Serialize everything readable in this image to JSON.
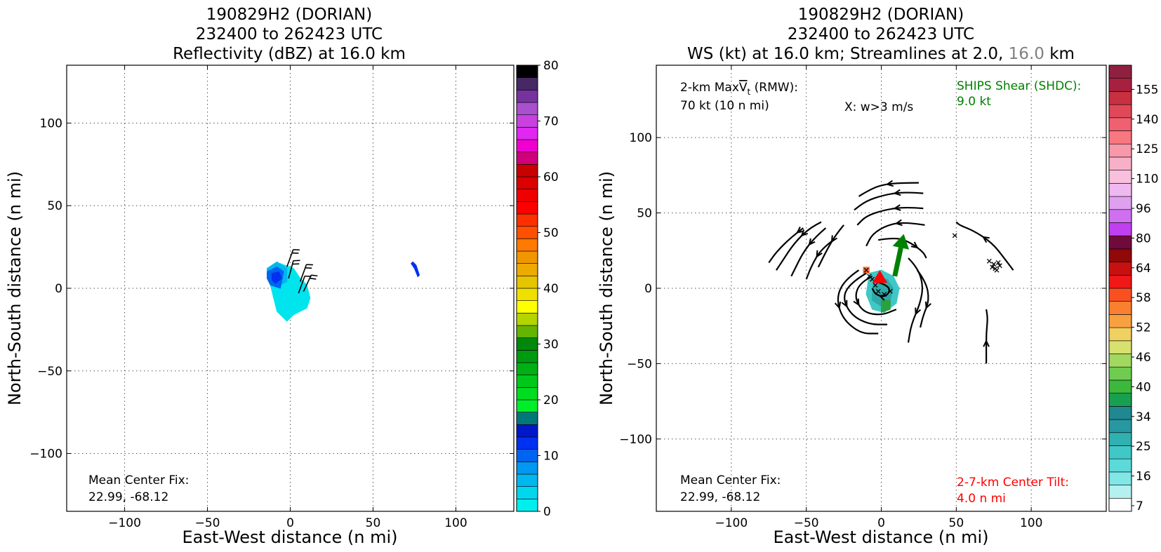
{
  "chart_data": [
    {
      "type": "heatmap",
      "title_lines": [
        "190829H2 (DORIAN)",
        "232400 to 262423 UTC",
        "Reflectivity (dBZ) at 16.0 km"
      ],
      "xlabel": "East-West distance (n mi)",
      "ylabel": "North-South distance (n mi)",
      "xlim": [
        -135,
        135
      ],
      "ylim": [
        -135,
        135
      ],
      "xticks": [
        -100,
        -50,
        0,
        50,
        100
      ],
      "yticks": [
        -100,
        -50,
        0,
        50,
        100
      ],
      "xticklabels": [
        "−100",
        "−50",
        "0",
        "50",
        "100"
      ],
      "yticklabels": [
        "−100",
        "−50",
        "0",
        "50",
        "100"
      ],
      "grid": true,
      "annotation_label": "Mean Center Fix:",
      "annotation_value": "22.99, -68.12",
      "colorbar": {
        "min": 0,
        "max": 80,
        "step": 4,
        "tick_values": [
          0,
          10,
          20,
          30,
          40,
          50,
          60,
          70,
          80
        ],
        "tick_labels": [
          "0",
          "10",
          "20",
          "30",
          "40",
          "50",
          "60",
          "70",
          "80"
        ],
        "colors": [
          "#00eeee",
          "#00d6ee",
          "#00b8ee",
          "#0098f0",
          "#0064f0",
          "#0030f0",
          "#0018c8",
          "#00787a",
          "#00ee2a",
          "#00dc20",
          "#00c81a",
          "#00b014",
          "#009a10",
          "#00880c",
          "#64b400",
          "#b4d400",
          "#ffff00",
          "#f0e000",
          "#e6c400",
          "#eeaa00",
          "#f09600",
          "#ff7800",
          "#ff5000",
          "#ff3000",
          "#ff0000",
          "#ee0000",
          "#dc0000",
          "#c80000",
          "#d0007a",
          "#f000d0",
          "#e028f0",
          "#c842e0",
          "#a850d0",
          "#7832a0",
          "#462864",
          "#000000"
        ]
      },
      "echo_regions": [
        {
          "color": "#00e4ee",
          "polygon": [
            [
              -12,
              10
            ],
            [
              -6,
              15
            ],
            [
              2,
              12
            ],
            [
              6,
              6
            ],
            [
              10,
              2
            ],
            [
              12,
              -6
            ],
            [
              10,
              -12
            ],
            [
              2,
              -16
            ],
            [
              -2,
              -20
            ],
            [
              -8,
              -14
            ],
            [
              -10,
              -6
            ],
            [
              -12,
              2
            ]
          ]
        },
        {
          "color": "#00b8ee",
          "polygon": [
            [
              -14,
              12
            ],
            [
              -8,
              16
            ],
            [
              -2,
              12
            ],
            [
              -2,
              4
            ],
            [
              -6,
              2
            ],
            [
              -10,
              4
            ],
            [
              -14,
              6
            ]
          ]
        },
        {
          "color": "#0064f0",
          "polygon": [
            [
              -14,
              10
            ],
            [
              -8,
              13
            ],
            [
              -4,
              10
            ],
            [
              -6,
              0
            ],
            [
              -12,
              2
            ],
            [
              -14,
              6
            ]
          ]
        },
        {
          "color": "#0030f0",
          "polygon": [
            [
              -11,
              9
            ],
            [
              -7,
              10
            ],
            [
              -5,
              6
            ],
            [
              -9,
              3
            ],
            [
              -11,
              5
            ]
          ]
        },
        {
          "color": "#0030f0",
          "polygon": [
            [
              74,
              16
            ],
            [
              76,
              14
            ],
            [
              78,
              8
            ],
            [
              77,
              7
            ],
            [
              75,
              12
            ],
            [
              73,
              15
            ]
          ]
        }
      ],
      "barbs": [
        {
          "x": -2,
          "y": 13,
          "dir": 200,
          "flags": 2
        },
        {
          "x": -1,
          "y": 6,
          "dir": 195,
          "flags": 2
        },
        {
          "x": 6,
          "y": 4,
          "dir": 200,
          "flags": 2
        },
        {
          "x": 8,
          "y": -2,
          "dir": 205,
          "flags": 2
        },
        {
          "x": 5,
          "y": -3,
          "dir": 200,
          "flags": 1
        }
      ]
    },
    {
      "type": "heatmap",
      "title_lines": [
        "190829H2 (DORIAN)",
        "232400 to 262423 UTC"
      ],
      "title_line3_parts": [
        "WS (kt) at 16.0 km; Streamlines at 2.0,",
        "16.0",
        "km"
      ],
      "title_line3_colors": [
        "#000000",
        "#808080",
        "#000000"
      ],
      "xlabel": "East-West distance (n mi)",
      "ylabel": "North-South distance (n mi)",
      "xlim": [
        -150,
        150
      ],
      "ylim": [
        -148,
        148
      ],
      "xticks": [
        -100,
        -50,
        0,
        50,
        100
      ],
      "yticks": [
        -100,
        -50,
        0,
        50,
        100
      ],
      "xticklabels": [
        "−100",
        "−50",
        "0",
        "50",
        "100"
      ],
      "yticklabels": [
        "−100",
        "−50",
        "0",
        "50",
        "100"
      ],
      "grid": true,
      "rmw_label_prefix": "2-km Max",
      "rmw_label_v": "V",
      "rmw_label_sub": "t",
      "rmw_label_suffix": " (RMW):",
      "rmw_value": "70 kt (10 n mi)",
      "w_label": "X: w>3 m/s",
      "shear_label": "SHIPS Shear (SHDC):",
      "shear_value": "9.0 kt",
      "shear_color": "#008000",
      "tilt_label": "2-7-km Center Tilt:",
      "tilt_value": "4.0 n mi",
      "tilt_color": "#ff0000",
      "annotation_label": "Mean Center Fix:",
      "annotation_value": "22.99, -68.12",
      "shear_vector": {
        "from": [
          9,
          8
        ],
        "to": [
          15,
          36
        ]
      },
      "tilt_vector": {
        "from": [
          -1,
          4
        ],
        "to": [
          -1,
          12
        ]
      },
      "w_points": [
        [
          -10,
          12
        ],
        [
          -8,
          8
        ],
        [
          -6,
          6
        ],
        [
          -4,
          2
        ],
        [
          -2,
          -2
        ],
        [
          2,
          -4
        ],
        [
          6,
          -2
        ],
        [
          49,
          35
        ],
        [
          72,
          18
        ],
        [
          74,
          14
        ],
        [
          75,
          16
        ],
        [
          76,
          13
        ],
        [
          78,
          17
        ],
        [
          79,
          15
        ],
        [
          77,
          12
        ]
      ],
      "ws_patch": [
        {
          "color": "#40c8c8",
          "polygon": [
            [
              -8,
              10
            ],
            [
              0,
              12
            ],
            [
              8,
              8
            ],
            [
              12,
              0
            ],
            [
              10,
              -10
            ],
            [
              2,
              -16
            ],
            [
              -6,
              -14
            ],
            [
              -10,
              -4
            ]
          ]
        },
        {
          "color": "#30a8a8",
          "polygon": [
            [
              -4,
              6
            ],
            [
              4,
              6
            ],
            [
              8,
              0
            ],
            [
              6,
              -8
            ],
            [
              0,
              -12
            ],
            [
              -6,
              -8
            ],
            [
              -6,
              0
            ]
          ]
        },
        {
          "color": "#2aa040",
          "polygon": [
            [
              0,
              -8
            ],
            [
              6,
              -8
            ],
            [
              6,
              -14
            ],
            [
              0,
              -16
            ]
          ]
        },
        {
          "color": "#ff7030",
          "polygon": [
            [
              -12,
              14
            ],
            [
              -8,
              14
            ],
            [
              -8,
              10
            ],
            [
              -12,
              10
            ]
          ]
        }
      ],
      "streamlines": [
        {
          "pts": [
            [
              -52,
              40
            ],
            [
              -60,
              34
            ],
            [
              -70,
              24
            ],
            [
              -75,
              17
            ]
          ],
          "arrow": 0.3
        },
        {
          "pts": [
            [
              -40,
              44
            ],
            [
              -48,
              40
            ],
            [
              -58,
              30
            ],
            [
              -66,
              18
            ],
            [
              -70,
              12
            ]
          ],
          "arrow": 0.35
        },
        {
          "pts": [
            [
              -37,
              40
            ],
            [
              -44,
              34
            ],
            [
              -52,
              24
            ],
            [
              -58,
              12
            ],
            [
              -60,
              8
            ]
          ],
          "arrow": 0.35
        },
        {
          "pts": [
            [
              -32,
              32
            ],
            [
              -40,
              26
            ],
            [
              -46,
              16
            ],
            [
              -50,
              6
            ]
          ],
          "arrow": 0.4
        },
        {
          "pts": [
            [
              -25,
              42
            ],
            [
              -30,
              36
            ],
            [
              -36,
              26
            ],
            [
              -42,
              14
            ]
          ],
          "arrow": 0.5
        },
        {
          "pts": [
            [
              25,
              70
            ],
            [
              10,
              70
            ],
            [
              -2,
              68
            ],
            [
              -10,
              64
            ],
            [
              -15,
              61
            ]
          ],
          "arrow": 0.4
        },
        {
          "pts": [
            [
              28,
              63
            ],
            [
              16,
              64
            ],
            [
              2,
              62
            ],
            [
              -10,
              58
            ],
            [
              -18,
              52
            ]
          ],
          "arrow": 0.4
        },
        {
          "pts": [
            [
              28,
              53
            ],
            [
              16,
              54
            ],
            [
              2,
              52
            ],
            [
              -10,
              48
            ],
            [
              -16,
              42
            ]
          ],
          "arrow": 0.4
        },
        {
          "pts": [
            [
              29,
              42
            ],
            [
              16,
              44
            ],
            [
              4,
              42
            ],
            [
              -6,
              36
            ],
            [
              -10,
              28
            ]
          ],
          "arrow": 0.4
        },
        {
          "pts": [
            [
              -2,
              32
            ],
            [
              10,
              34
            ],
            [
              20,
              30
            ],
            [
              28,
              24
            ],
            [
              30,
              20
            ]
          ],
          "arrow": 0.6
        },
        {
          "pts": [
            [
              -15,
              12
            ],
            [
              -24,
              6
            ],
            [
              -30,
              -6
            ],
            [
              -26,
              -20
            ],
            [
              -14,
              -30
            ],
            [
              -2,
              -30
            ]
          ],
          "arrow": 0.5
        },
        {
          "pts": [
            [
              -10,
              10
            ],
            [
              -20,
              4
            ],
            [
              -26,
              -6
            ],
            [
              -20,
              -18
            ],
            [
              -8,
              -24
            ],
            [
              4,
              -24
            ]
          ],
          "arrow": 0.55
        },
        {
          "pts": [
            [
              -6,
              8
            ],
            [
              -14,
              4
            ],
            [
              -18,
              -6
            ],
            [
              -12,
              -16
            ],
            [
              0,
              -18
            ],
            [
              10,
              -14
            ]
          ],
          "arrow": 0.55
        },
        {
          "pts": [
            [
              18,
              20
            ],
            [
              24,
              14
            ],
            [
              28,
              2
            ],
            [
              26,
              -10
            ],
            [
              20,
              -24
            ],
            [
              18,
              -36
            ]
          ],
          "arrow": 0.7
        },
        {
          "pts": [
            [
              24,
              12
            ],
            [
              30,
              4
            ],
            [
              32,
              -8
            ],
            [
              28,
              -18
            ],
            [
              26,
              -26
            ]
          ],
          "arrow": 0.6
        },
        {
          "pts": [
            [
              -2,
              4
            ],
            [
              4,
              2
            ],
            [
              6,
              -2
            ],
            [
              2,
              -6
            ],
            [
              -4,
              -4
            ],
            [
              -6,
              0
            ]
          ],
          "arrow": 0.6
        },
        {
          "pts": [
            [
              88,
              12
            ],
            [
              82,
              20
            ],
            [
              74,
              30
            ],
            [
              62,
              38
            ],
            [
              52,
              42
            ],
            [
              50,
              44
            ]
          ],
          "arrow": 0.5
        },
        {
          "pts": [
            [
              70,
              -50
            ],
            [
              70,
              -40
            ],
            [
              70,
              -30
            ],
            [
              71,
              -20
            ],
            [
              70,
              -14
            ]
          ],
          "arrow": 0.3
        }
      ],
      "colorbar": {
        "tick_labels": [
          "7",
          "16",
          "25",
          "34",
          "40",
          "46",
          "52",
          "58",
          "64",
          "80",
          "96",
          "110",
          "125",
          "140",
          "155"
        ],
        "tick_index": [
          0,
          2,
          4,
          6,
          8,
          10,
          12,
          14,
          16,
          18,
          20,
          22,
          24,
          26,
          28
        ],
        "colors": [
          "#ffffff",
          "#b4f0f0",
          "#80e6e6",
          "#5cdada",
          "#40c8c8",
          "#30b0b0",
          "#2898a0",
          "#208890",
          "#18a050",
          "#3cb83c",
          "#70cc50",
          "#a0d860",
          "#d8e070",
          "#f0d060",
          "#f8a040",
          "#f88030",
          "#f85020",
          "#f01818",
          "#c81010",
          "#900808",
          "#700a3c",
          "#c040f0",
          "#d070f0",
          "#e0a0f0",
          "#f0b8f0",
          "#f8c0dc",
          "#f8b0c8",
          "#f898a8",
          "#f87880",
          "#f06070",
          "#e04858",
          "#c83040",
          "#a82040",
          "#902040"
        ]
      }
    }
  ]
}
